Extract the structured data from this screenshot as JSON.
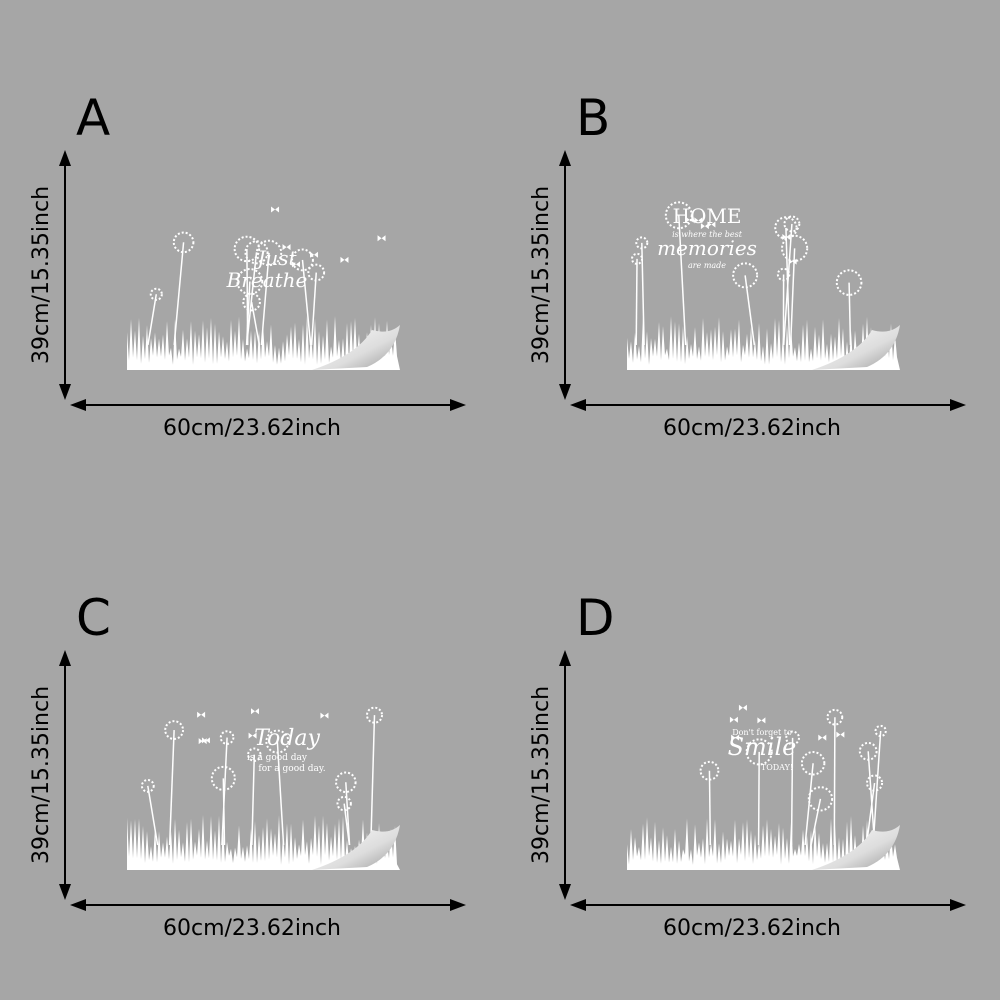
{
  "panels": [
    {
      "letter": "A",
      "height": "39cm/15.35inch",
      "width": "60cm/23.62inch",
      "decal_text": [
        "Just",
        "Breathe"
      ]
    },
    {
      "letter": "B",
      "height": "39cm/15.35inch",
      "width": "60cm/23.62inch",
      "decal_text": [
        "HOME",
        "is where the best",
        "memories",
        "are made"
      ]
    },
    {
      "letter": "C",
      "height": "39cm/15.35inch",
      "width": "60cm/23.62inch",
      "decal_text": [
        "Today",
        "is a good day",
        "for a good day."
      ]
    },
    {
      "letter": "D",
      "height": "39cm/15.35inch",
      "width": "60cm/23.62inch",
      "decal_text": [
        "Don't forget to",
        "Smile",
        "TODAY!"
      ]
    }
  ]
}
